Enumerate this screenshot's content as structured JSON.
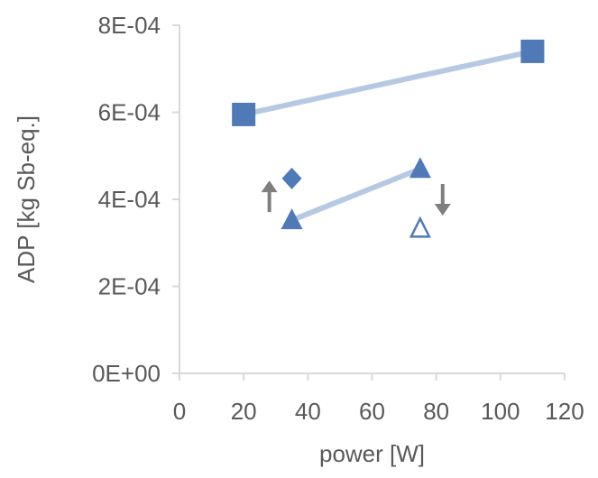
{
  "chart_data": {
    "type": "scatter",
    "title": "",
    "xlabel": "power [W]",
    "ylabel": "ADP [kg Sb-eq.]",
    "xlim": [
      0,
      120
    ],
    "ylim": [
      0,
      0.0008
    ],
    "x_ticks": [
      0,
      20,
      40,
      60,
      80,
      100,
      120
    ],
    "x_tick_labels": [
      "0",
      "20",
      "40",
      "60",
      "80",
      "100",
      "120"
    ],
    "y_ticks": [
      0,
      0.0002,
      0.0004,
      0.0006,
      0.0008
    ],
    "y_tick_labels": [
      "0E+00",
      "2E-04",
      "4E-04",
      "6E-04",
      "8E-04"
    ],
    "grid": false,
    "legend": "none",
    "series": [
      {
        "marker": "square",
        "line": true,
        "points": [
          {
            "x": 20,
            "y": 0.000595
          },
          {
            "x": 110,
            "y": 0.00074
          }
        ]
      },
      {
        "marker": "triangle",
        "line": true,
        "points": [
          {
            "x": 35,
            "y": 0.000352
          },
          {
            "x": 75,
            "y": 0.00047
          }
        ]
      },
      {
        "marker": "diamond",
        "line": false,
        "points": [
          {
            "x": 35,
            "y": 0.000448
          }
        ]
      },
      {
        "marker": "triangle-open",
        "line": false,
        "points": [
          {
            "x": 75,
            "y": 0.000335
          }
        ]
      }
    ],
    "annotations": [
      {
        "type": "arrow-up",
        "x": 28,
        "y": 0.000408
      },
      {
        "type": "arrow-down",
        "x": 82,
        "y": 0.000398
      }
    ],
    "colors": {
      "marker": "#4f79b7",
      "line": "#b7c9e2",
      "axis": "#d9d9d9",
      "text": "#595959",
      "arrow": "#7f7f7f"
    }
  }
}
